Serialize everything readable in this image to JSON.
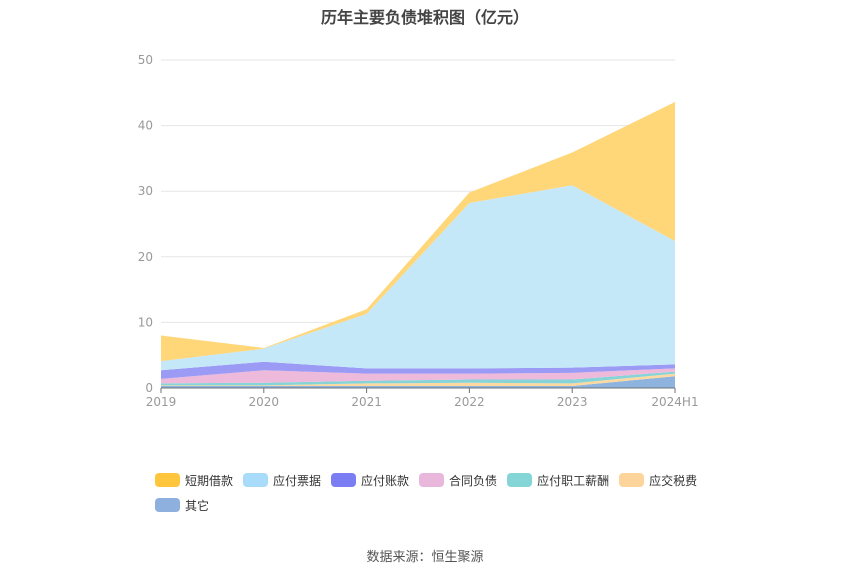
{
  "chart_data": {
    "type": "area",
    "stacked": true,
    "title": "历年主要负债堆积图（亿元）",
    "categories": [
      "2019",
      "2020",
      "2021",
      "2022",
      "2023",
      "2024H1"
    ],
    "ylim": [
      0,
      50
    ],
    "yticks": [
      0,
      10,
      20,
      30,
      40,
      50
    ],
    "grid": true,
    "legend_position": "bottom",
    "series": [
      {
        "name": "其它",
        "color": "#8eb3df",
        "values": [
          0.3,
          0.3,
          0.3,
          0.3,
          0.3,
          1.8
        ]
      },
      {
        "name": "应交税费",
        "color": "#fdd9a0",
        "values": [
          0.1,
          0.1,
          0.4,
          0.5,
          0.4,
          0.4
        ]
      },
      {
        "name": "应付职工薪酬",
        "color": "#86d4d8",
        "values": [
          0.3,
          0.4,
          0.4,
          0.5,
          0.6,
          0.3
        ]
      },
      {
        "name": "合同负债",
        "color": "#eebadb",
        "values": [
          0.7,
          1.9,
          1.1,
          0.9,
          1.0,
          0.5
        ]
      },
      {
        "name": "应付账款",
        "color": "#9b9bf5",
        "values": [
          1.3,
          1.3,
          0.8,
          0.8,
          0.8,
          0.6
        ]
      },
      {
        "name": "应付票据",
        "color": "#c5e8f9",
        "values": [
          1.4,
          2.0,
          8.3,
          25.2,
          27.8,
          18.8
        ]
      },
      {
        "name": "短期借款",
        "color": "#ffd678",
        "values": [
          3.9,
          0.1,
          0.7,
          1.6,
          5.0,
          21.2
        ]
      }
    ]
  },
  "legend": [
    {
      "label": "短期借款",
      "color": "#ffc53d"
    },
    {
      "label": "应付票据",
      "color": "#a9dcfb"
    },
    {
      "label": "应付账款",
      "color": "#7b7ef3"
    },
    {
      "label": "合同负债",
      "color": "#e9b7dc"
    },
    {
      "label": "应付职工薪酬",
      "color": "#84d6d6"
    },
    {
      "label": "应交税费",
      "color": "#fdd59c"
    },
    {
      "label": "其它",
      "color": "#8eb0de"
    }
  ],
  "source_text": "数据来源：恒生聚源"
}
